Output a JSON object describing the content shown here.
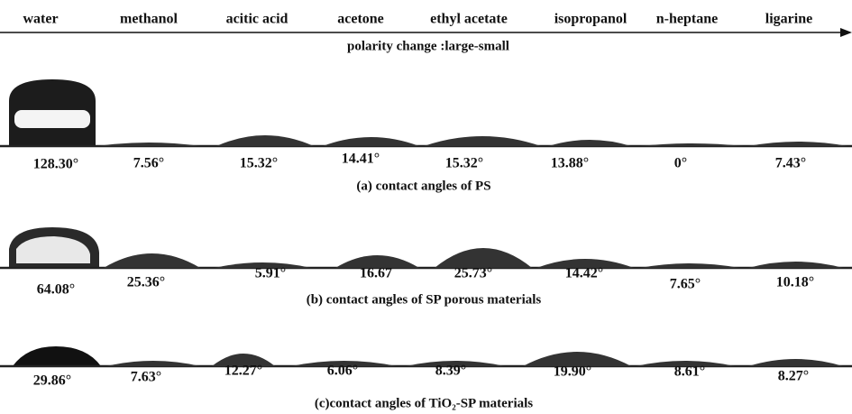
{
  "header": {
    "solvents": [
      "water",
      "methanol",
      "acitic acid",
      "acetone",
      "ethyl acetate",
      "isopropanol",
      "n-heptane",
      "ligarine"
    ],
    "polarity": "polarity change :large-small"
  },
  "panels": [
    {
      "caption": "(a) contact angles of PS",
      "angles": [
        "128.30°",
        "7.56°",
        "15.32°",
        "14.41°",
        "15.32°",
        "13.88°",
        "0°",
        "7.43°"
      ]
    },
    {
      "caption": "(b) contact angles of SP porous materials",
      "angles": [
        "64.08°",
        "25.36°",
        "5.91°",
        "16.67",
        "25.73°",
        "14.42°",
        "7.65°",
        "10.18°"
      ]
    },
    {
      "caption": "(c)contact angles of TiO₂-SP materials",
      "angles": [
        "29.86°",
        "7.63°",
        "12.27°",
        "6.06°",
        "8.39°",
        "19.90°",
        "8.61°",
        "8.27°"
      ]
    }
  ]
}
